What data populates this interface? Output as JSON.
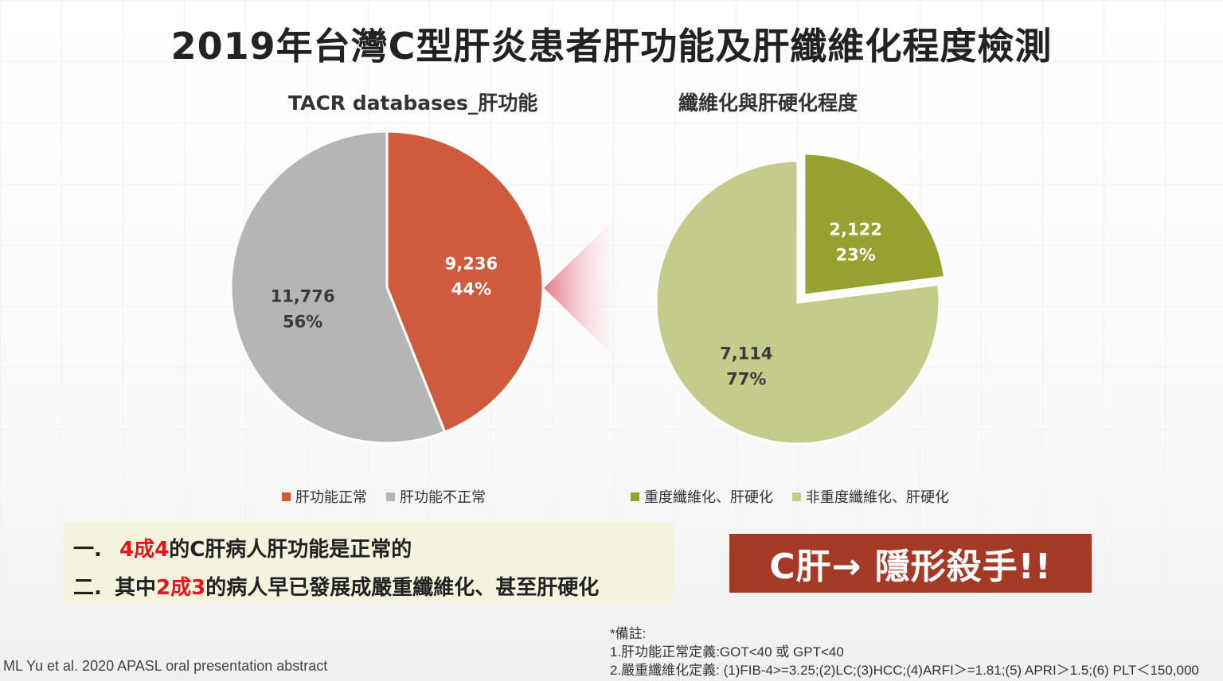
{
  "title": "2019年台灣C型肝炎患者肝功能及肝纖維化程度檢測",
  "chart_data": [
    {
      "type": "pie",
      "title": "TACR databases_肝功能",
      "slices": [
        {
          "label": "肝功能正常",
          "value": 9236,
          "value_label": "9,236",
          "percent_label": "44%",
          "color": "#d05a3e"
        },
        {
          "label": "肝功能不正常",
          "value": 11776,
          "value_label": "11,776",
          "percent_label": "56%",
          "color": "#b5b5b5"
        }
      ],
      "legend_position": "bottom"
    },
    {
      "type": "pie",
      "title": "纖維化與肝硬化程度",
      "slices": [
        {
          "label": "重度纖維化、肝硬化",
          "value": 2122,
          "value_label": "2,122",
          "percent_label": "23%",
          "color": "#96a12f",
          "exploded": true
        },
        {
          "label": "非重度纖維化、肝硬化",
          "value": 7114,
          "value_label": "7,114",
          "percent_label": "77%",
          "color": "#c5cb8b"
        }
      ],
      "legend_position": "bottom"
    }
  ],
  "summary": {
    "line1": {
      "bullet": "一.",
      "hl": "4成4",
      "rest": "的C肝病人肝功能是正常的"
    },
    "line2": {
      "bullet": "二.",
      "pre": "其中",
      "hl": "2成3",
      "rest": "的病人早已發展成嚴重纖維化、甚至肝硬化"
    }
  },
  "callout": "C肝→ 隱形殺手!!",
  "citation": "ML Yu et al. 2020  APASL  oral presentation abstract",
  "notes": {
    "header": "*備註:",
    "n1": "1.肝功能正常定義:GOT<40 或 GPT<40",
    "n2": "2.嚴重纖維化定義: (1)FIB-4>=3.25;(2)LC;(3)HCC;(4)ARFI＞=1.81;(5) APRI＞1.5;(6) PLT＜150,000"
  },
  "colors": {
    "highlight": "#e8141a",
    "callout_bg": "#a43a26",
    "summary_bg": "#f4f3dd"
  }
}
